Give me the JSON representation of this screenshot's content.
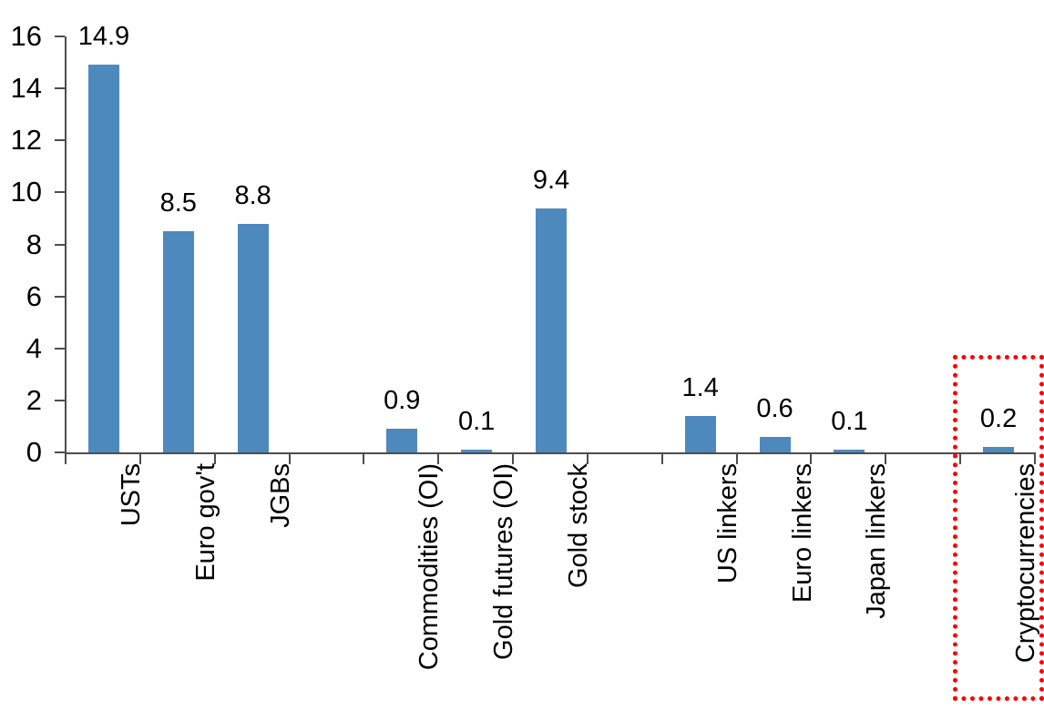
{
  "chart_data": {
    "type": "bar",
    "title": "",
    "xlabel": "",
    "ylabel": "",
    "categories": [
      "USTs",
      "Euro gov't",
      "JGBs",
      "Commodities (OI)",
      "Gold futures (OI)",
      "Gold stock",
      "US linkers",
      "Euro linkers",
      "Japan linkers",
      "Cryptocurrencies"
    ],
    "values": [
      14.9,
      8.5,
      8.8,
      0.9,
      0.1,
      9.4,
      1.4,
      0.6,
      0.1,
      0.2
    ],
    "value_labels": [
      "14.9",
      "8.5",
      "8.8",
      "0.9",
      "0.1",
      "9.4",
      "1.4",
      "0.6",
      "0.1",
      "0.2"
    ],
    "slots": [
      0,
      1,
      2,
      4,
      5,
      6,
      8,
      9,
      10,
      12
    ],
    "total_slots": 13,
    "ylim": [
      0,
      16
    ],
    "yticks": [
      0,
      2,
      4,
      6,
      8,
      10,
      12,
      14,
      16
    ],
    "ytick_labels": [
      "0",
      "2",
      "4",
      "6",
      "8",
      "10",
      "12",
      "14",
      "16"
    ],
    "grid": false,
    "legend": false,
    "bar_color": "#4e89bd",
    "axis_color": "#4d4d4d",
    "text_color": "#000000",
    "highlight": {
      "category": "Cryptocurrencies",
      "style": "dotted-box",
      "color": "#ff0000"
    }
  }
}
